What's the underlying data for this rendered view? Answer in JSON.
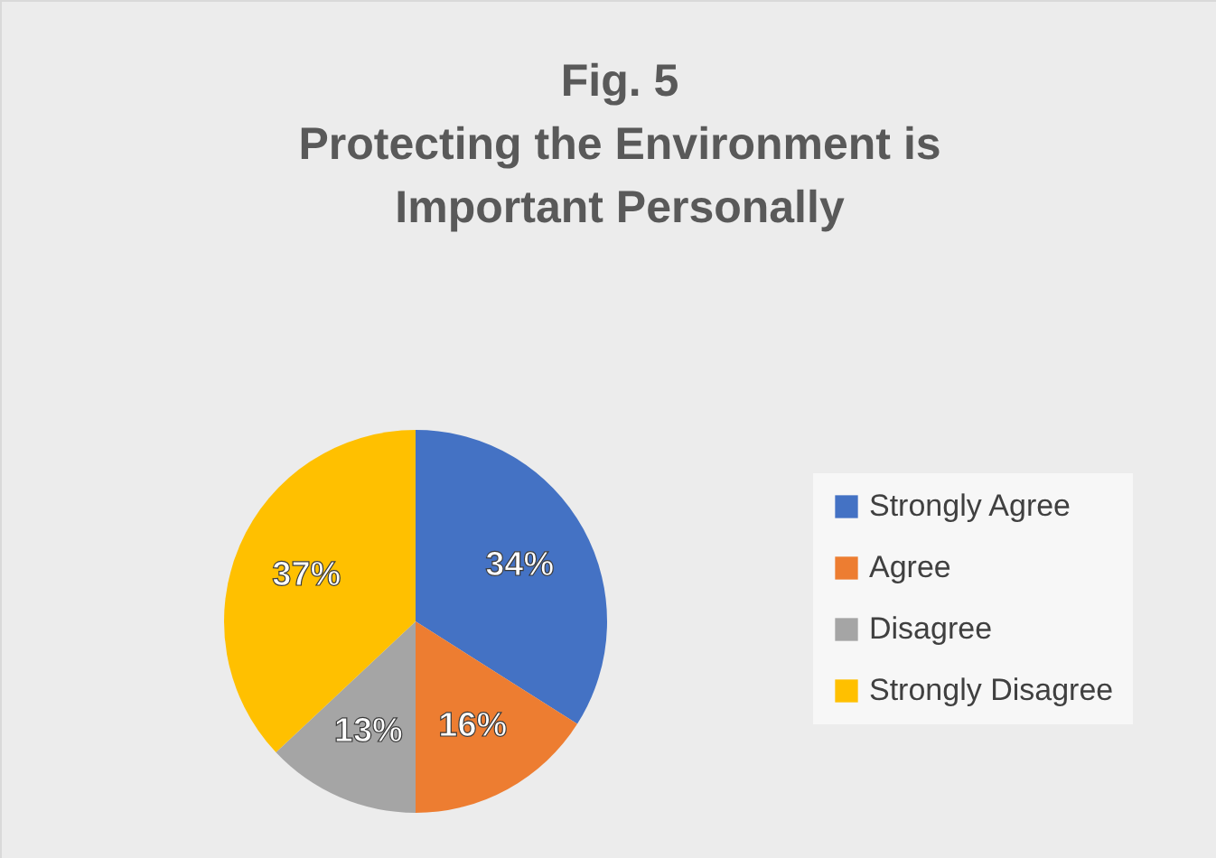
{
  "chart_data": {
    "type": "pie",
    "title": "Fig. 5\nProtecting the Environment is\nImportant Personally",
    "categories": [
      "Strongly Agree",
      "Agree",
      "Disagree",
      "Strongly Disagree"
    ],
    "values": [
      34,
      16,
      13,
      37
    ],
    "colors": [
      "#4472c4",
      "#ed7d31",
      "#a5a5a5",
      "#ffc000"
    ],
    "value_labels": [
      "34%",
      "16%",
      "13%",
      "37%"
    ],
    "legend": "right"
  }
}
